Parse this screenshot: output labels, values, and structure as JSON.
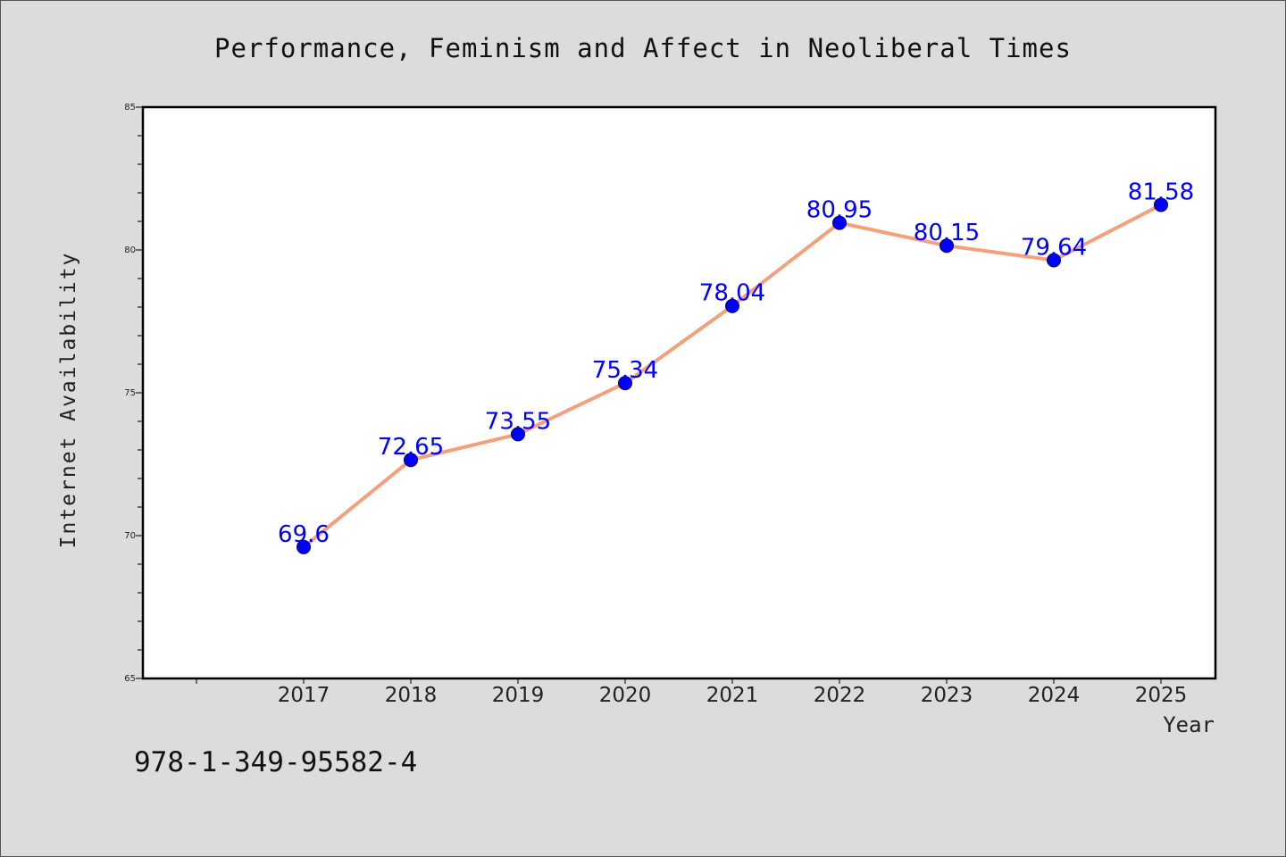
{
  "chart_data": {
    "type": "line",
    "title": "Performance, Feminism and Affect in Neoliberal Times",
    "xlabel": "Year",
    "ylabel": "Internet Availability",
    "categories": [
      "2017",
      "2018",
      "2019",
      "2020",
      "2021",
      "2022",
      "2023",
      "2024",
      "2025"
    ],
    "series": [
      {
        "values": [
          69.6,
          72.65,
          73.55,
          75.34,
          78.04,
          80.95,
          80.15,
          79.64,
          81.58
        ],
        "labels": [
          "69.6",
          "72.65",
          "73.55",
          "75.34",
          "78.04",
          "80.95",
          "80.15",
          "79.64",
          "81.58"
        ]
      }
    ],
    "ylim": [
      65,
      85
    ],
    "yticks": [
      "65",
      "70",
      "75",
      "80",
      "85"
    ],
    "grid": false,
    "legend": "none",
    "colors": {
      "line": "#f4a07c",
      "marker": "#0000ff",
      "marker_edge": "#000066",
      "data_label": "#0000ff",
      "background": "#dcdcdc",
      "plot_background": "#ffffff"
    }
  },
  "footer": {
    "isbn": "978-1-349-95582-4"
  }
}
